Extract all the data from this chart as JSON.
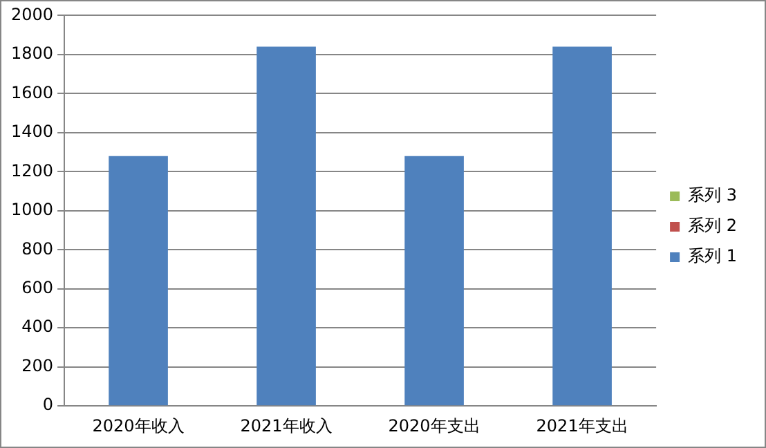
{
  "chart_data": {
    "type": "bar",
    "categories": [
      "2020年收入",
      "2021年收入",
      "2020年支出",
      "2021年支出"
    ],
    "series": [
      {
        "name": "系列 1",
        "color": "#4f81bd",
        "values": [
          1280,
          1840,
          1280,
          1840
        ]
      },
      {
        "name": "系列 2",
        "color": "#c0504d",
        "values": [
          null,
          null,
          null,
          null
        ]
      },
      {
        "name": "系列 3",
        "color": "#9bbb59",
        "values": [
          null,
          null,
          null,
          null
        ]
      }
    ],
    "ylim": [
      0,
      2000
    ],
    "yticks": [
      0,
      200,
      400,
      600,
      800,
      1000,
      1200,
      1400,
      1600,
      1800,
      2000
    ],
    "grid": "y",
    "legend": "right"
  }
}
